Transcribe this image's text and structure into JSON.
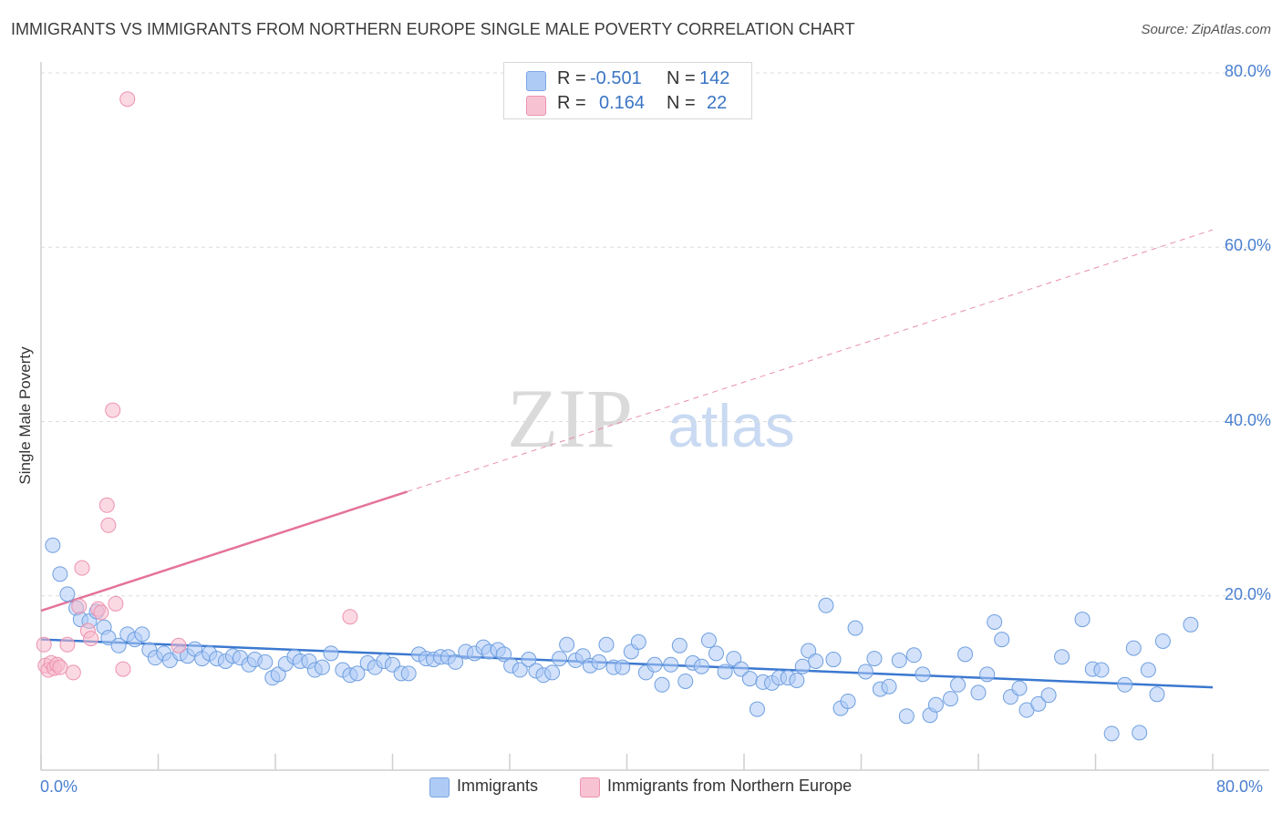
{
  "header": {
    "title": "IMMIGRANTS VS IMMIGRANTS FROM NORTHERN EUROPE SINGLE MALE POVERTY CORRELATION CHART",
    "source": "Source: ZipAtlas.com"
  },
  "watermark": {
    "zip": "ZIP",
    "atlas": "atlas"
  },
  "stats": {
    "r_label": "R =",
    "n_label": "N =",
    "rows": [
      {
        "r": "-0.501",
        "n": "142",
        "color": "#aecbf5"
      },
      {
        "r": "0.164",
        "n": "22",
        "color": "#f7b9cc"
      }
    ]
  },
  "legend": {
    "items": [
      {
        "label": "Immigrants",
        "color": "#aecbf5"
      },
      {
        "label": "Immigrants from Northern Europe",
        "color": "#f7b9cc"
      }
    ]
  },
  "colors": {
    "blue": "#3b78d0",
    "pink": "#e4739a",
    "axis_text": "#4a7fd0"
  },
  "chart_data": {
    "type": "scatter",
    "title": "IMMIGRANTS VS IMMIGRANTS FROM NORTHERN EUROPE SINGLE MALE POVERTY CORRELATION CHART",
    "xlabel": "",
    "ylabel": "Single Male Poverty",
    "xlim": [
      0,
      80
    ],
    "ylim": [
      0,
      80
    ],
    "x_tick_labels": [
      "0.0%",
      "80.0%"
    ],
    "y_tick_labels": [
      "20.0%",
      "40.0%",
      "60.0%",
      "80.0%"
    ],
    "y_ticks": [
      20,
      40,
      60,
      80
    ],
    "grid": "horizontal dashed",
    "legend_position": "bottom-center",
    "series": [
      {
        "name": "Immigrants",
        "color": "#3b78d0",
        "trend": {
          "x0": 0,
          "y0": 15.0,
          "x1": 80,
          "y1": 9.5,
          "dashed_from": null
        },
        "points": [
          [
            0.8,
            25.8
          ],
          [
            1.3,
            22.5
          ],
          [
            1.8,
            20.2
          ],
          [
            2.4,
            18.6
          ],
          [
            2.7,
            17.3
          ],
          [
            3.3,
            17.1
          ],
          [
            3.8,
            18.2
          ],
          [
            4.3,
            16.4
          ],
          [
            4.6,
            15.2
          ],
          [
            5.3,
            14.3
          ],
          [
            5.9,
            15.6
          ],
          [
            6.4,
            15.0
          ],
          [
            6.9,
            15.6
          ],
          [
            7.4,
            13.8
          ],
          [
            7.8,
            12.9
          ],
          [
            8.4,
            13.4
          ],
          [
            8.8,
            12.6
          ],
          [
            9.5,
            13.4
          ],
          [
            10.0,
            13.1
          ],
          [
            10.5,
            13.9
          ],
          [
            11.0,
            12.8
          ],
          [
            11.5,
            13.4
          ],
          [
            12.0,
            12.8
          ],
          [
            12.6,
            12.5
          ],
          [
            13.1,
            13.1
          ],
          [
            13.6,
            12.9
          ],
          [
            14.2,
            12.1
          ],
          [
            14.6,
            12.7
          ],
          [
            15.3,
            12.4
          ],
          [
            15.8,
            10.6
          ],
          [
            16.2,
            11.0
          ],
          [
            16.7,
            12.2
          ],
          [
            17.3,
            13.0
          ],
          [
            17.7,
            12.5
          ],
          [
            18.3,
            12.5
          ],
          [
            18.7,
            11.5
          ],
          [
            19.2,
            11.8
          ],
          [
            19.8,
            13.4
          ],
          [
            20.6,
            11.5
          ],
          [
            21.1,
            10.9
          ],
          [
            21.6,
            11.1
          ],
          [
            22.3,
            12.3
          ],
          [
            22.8,
            11.8
          ],
          [
            23.4,
            12.5
          ],
          [
            24.0,
            12.1
          ],
          [
            24.6,
            11.1
          ],
          [
            25.1,
            11.1
          ],
          [
            25.8,
            13.3
          ],
          [
            26.3,
            12.8
          ],
          [
            26.8,
            12.7
          ],
          [
            27.3,
            13.0
          ],
          [
            27.8,
            13.0
          ],
          [
            28.3,
            12.4
          ],
          [
            29.0,
            13.6
          ],
          [
            29.6,
            13.4
          ],
          [
            30.2,
            14.1
          ],
          [
            30.6,
            13.6
          ],
          [
            31.2,
            13.8
          ],
          [
            31.6,
            13.3
          ],
          [
            32.1,
            12.0
          ],
          [
            32.7,
            11.5
          ],
          [
            33.3,
            12.7
          ],
          [
            33.8,
            11.4
          ],
          [
            34.3,
            10.9
          ],
          [
            34.9,
            11.2
          ],
          [
            35.4,
            12.8
          ],
          [
            35.9,
            14.4
          ],
          [
            36.5,
            12.6
          ],
          [
            37.0,
            13.1
          ],
          [
            37.5,
            12.0
          ],
          [
            38.1,
            12.4
          ],
          [
            38.6,
            14.4
          ],
          [
            39.1,
            11.8
          ],
          [
            39.7,
            11.8
          ],
          [
            40.3,
            13.6
          ],
          [
            40.8,
            14.7
          ],
          [
            41.3,
            11.2
          ],
          [
            41.9,
            12.1
          ],
          [
            42.4,
            9.8
          ],
          [
            43.0,
            12.1
          ],
          [
            43.6,
            14.3
          ],
          [
            44.0,
            10.2
          ],
          [
            44.5,
            12.3
          ],
          [
            45.1,
            11.9
          ],
          [
            45.6,
            14.9
          ],
          [
            46.1,
            13.4
          ],
          [
            46.7,
            11.3
          ],
          [
            47.3,
            12.8
          ],
          [
            47.8,
            11.6
          ],
          [
            48.4,
            10.5
          ],
          [
            48.9,
            7.0
          ],
          [
            49.3,
            10.1
          ],
          [
            49.9,
            10.0
          ],
          [
            50.4,
            10.6
          ],
          [
            51.0,
            10.6
          ],
          [
            51.6,
            10.3
          ],
          [
            52.0,
            11.9
          ],
          [
            52.4,
            13.7
          ],
          [
            52.9,
            12.5
          ],
          [
            53.6,
            18.9
          ],
          [
            54.1,
            12.7
          ],
          [
            54.6,
            7.1
          ],
          [
            55.1,
            7.9
          ],
          [
            55.6,
            16.3
          ],
          [
            56.3,
            11.3
          ],
          [
            56.9,
            12.8
          ],
          [
            57.3,
            9.3
          ],
          [
            57.9,
            9.6
          ],
          [
            58.6,
            12.6
          ],
          [
            59.1,
            6.2
          ],
          [
            59.6,
            13.2
          ],
          [
            60.2,
            11.0
          ],
          [
            60.7,
            6.3
          ],
          [
            61.1,
            7.5
          ],
          [
            62.1,
            8.2
          ],
          [
            62.6,
            9.8
          ],
          [
            63.1,
            13.3
          ],
          [
            64.0,
            8.9
          ],
          [
            64.6,
            11.0
          ],
          [
            65.1,
            17.0
          ],
          [
            65.6,
            15.0
          ],
          [
            66.2,
            8.4
          ],
          [
            66.8,
            9.4
          ],
          [
            67.3,
            6.9
          ],
          [
            68.1,
            7.6
          ],
          [
            68.8,
            8.6
          ],
          [
            69.7,
            13.0
          ],
          [
            71.1,
            17.3
          ],
          [
            71.8,
            11.6
          ],
          [
            72.4,
            11.5
          ],
          [
            73.1,
            4.2
          ],
          [
            74.0,
            9.8
          ],
          [
            74.6,
            14.0
          ],
          [
            75.0,
            4.3
          ],
          [
            75.6,
            11.5
          ],
          [
            76.2,
            8.7
          ],
          [
            76.6,
            14.8
          ],
          [
            78.5,
            16.7
          ]
        ]
      },
      {
        "name": "Immigrants from Northern Europe",
        "color": "#e4739a",
        "trend": {
          "x0": 0,
          "y0": 18.3,
          "x1": 80,
          "y1": 62.0,
          "dashed_from": 25
        },
        "points": [
          [
            0.2,
            14.4
          ],
          [
            0.3,
            12.0
          ],
          [
            0.5,
            11.5
          ],
          [
            0.7,
            12.3
          ],
          [
            0.9,
            11.7
          ],
          [
            1.1,
            12.1
          ],
          [
            1.3,
            11.8
          ],
          [
            1.8,
            14.4
          ],
          [
            2.2,
            11.2
          ],
          [
            2.6,
            18.8
          ],
          [
            2.8,
            23.2
          ],
          [
            3.2,
            16.0
          ],
          [
            3.4,
            15.1
          ],
          [
            3.9,
            18.5
          ],
          [
            4.1,
            18.1
          ],
          [
            4.5,
            30.4
          ],
          [
            4.6,
            28.1
          ],
          [
            4.9,
            41.3
          ],
          [
            5.1,
            19.1
          ],
          [
            5.6,
            11.6
          ],
          [
            5.9,
            77.0
          ],
          [
            9.4,
            14.3
          ],
          [
            21.1,
            17.6
          ]
        ]
      }
    ]
  }
}
